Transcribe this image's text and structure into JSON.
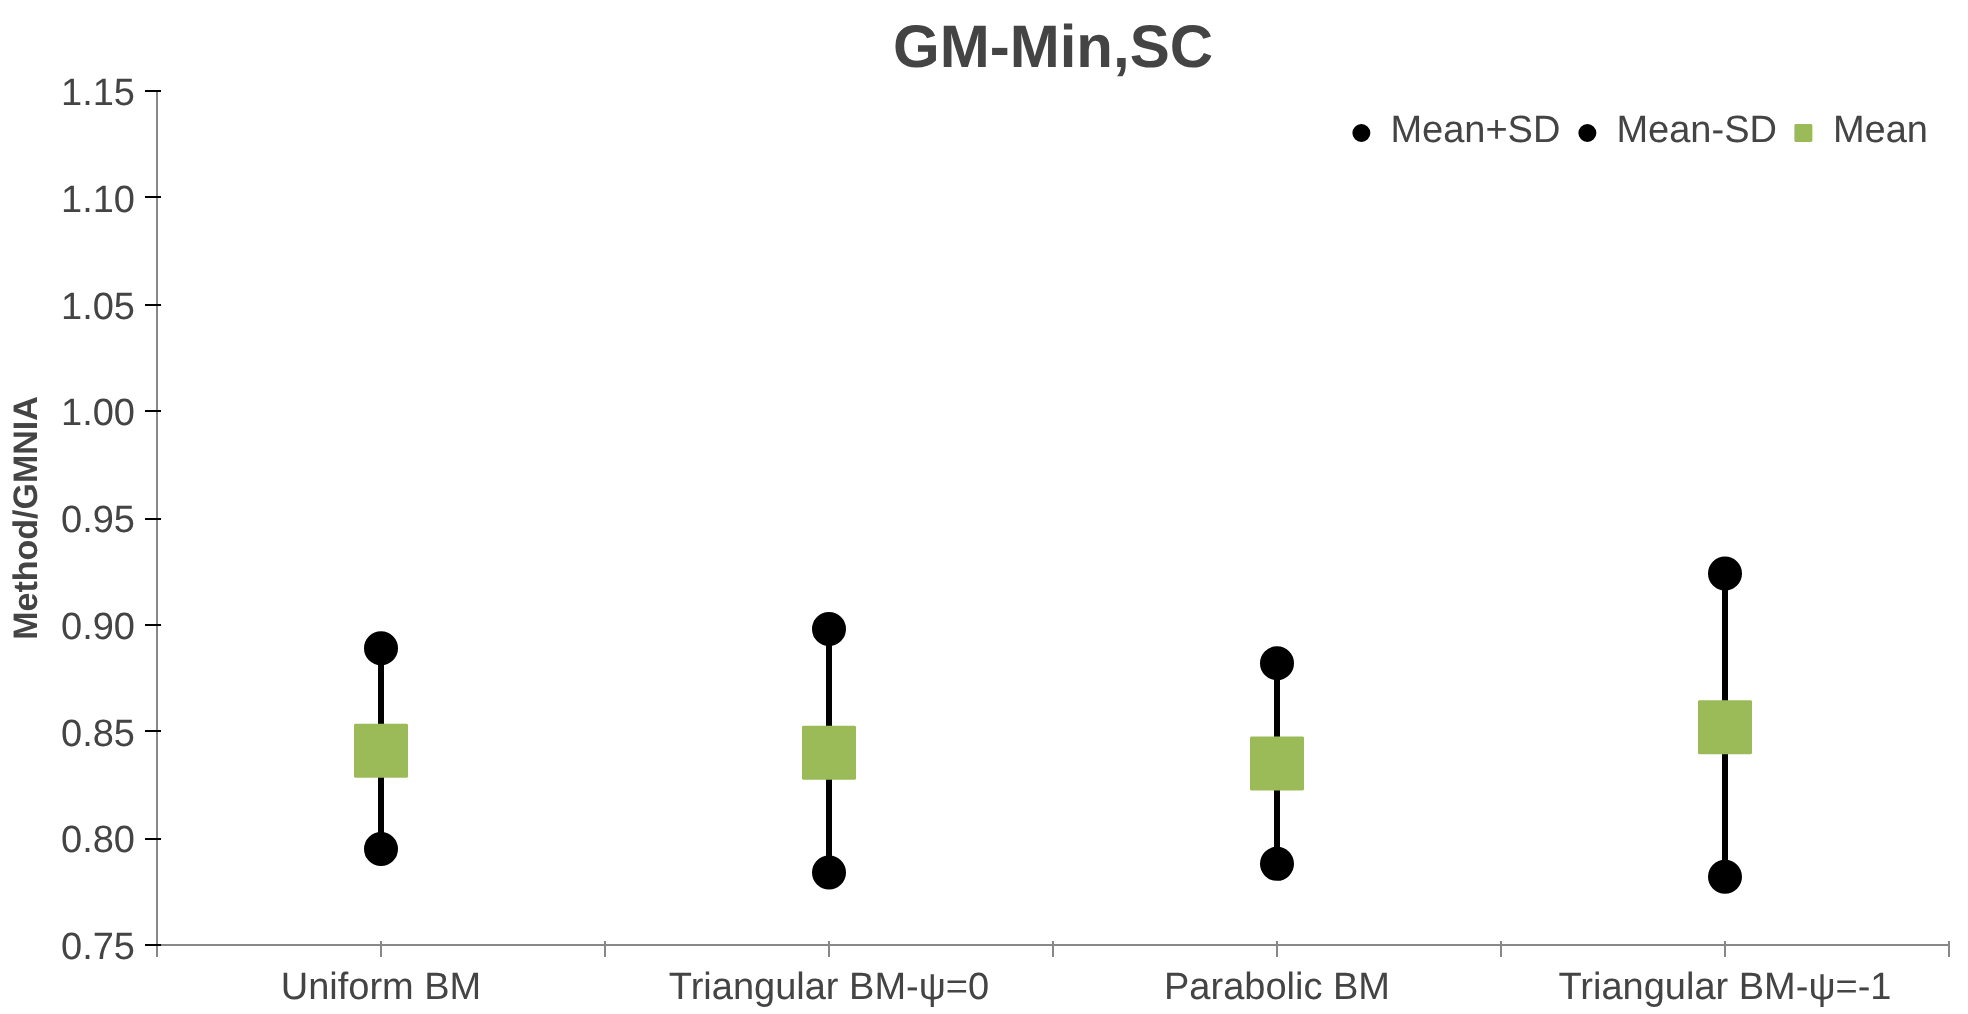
{
  "chart_data": {
    "type": "scatter",
    "title": "GM-Min,SC",
    "ylabel": "Method/GMNIA",
    "categories": [
      "Uniform BM",
      "Triangular BM-ψ=0",
      "Parabolic BM",
      "Triangular BM-ψ=-1"
    ],
    "series": [
      {
        "name": "Mean+SD",
        "color": "#000000",
        "marker": "circle",
        "values": [
          0.889,
          0.898,
          0.882,
          0.924
        ]
      },
      {
        "name": "Mean-SD",
        "color": "#000000",
        "marker": "circle",
        "values": [
          0.795,
          0.784,
          0.788,
          0.782
        ]
      },
      {
        "name": "Mean",
        "color": "#9bbb59",
        "marker": "square",
        "values": [
          0.841,
          0.84,
          0.835,
          0.852
        ]
      }
    ],
    "ylim": [
      0.75,
      1.15
    ],
    "yticks": [
      {
        "value": 0.75,
        "label": "0.75"
      },
      {
        "value": 0.8,
        "label": "0.80"
      },
      {
        "value": 0.85,
        "label": "0.85"
      },
      {
        "value": 0.9,
        "label": "0.90"
      },
      {
        "value": 0.95,
        "label": "0.95"
      },
      {
        "value": 1.0,
        "label": "1.00"
      },
      {
        "value": 1.05,
        "label": "1.05"
      },
      {
        "value": 1.1,
        "label": "1.10"
      },
      {
        "value": 1.15,
        "label": "1.15"
      }
    ],
    "grid": false,
    "legend": "top right"
  }
}
